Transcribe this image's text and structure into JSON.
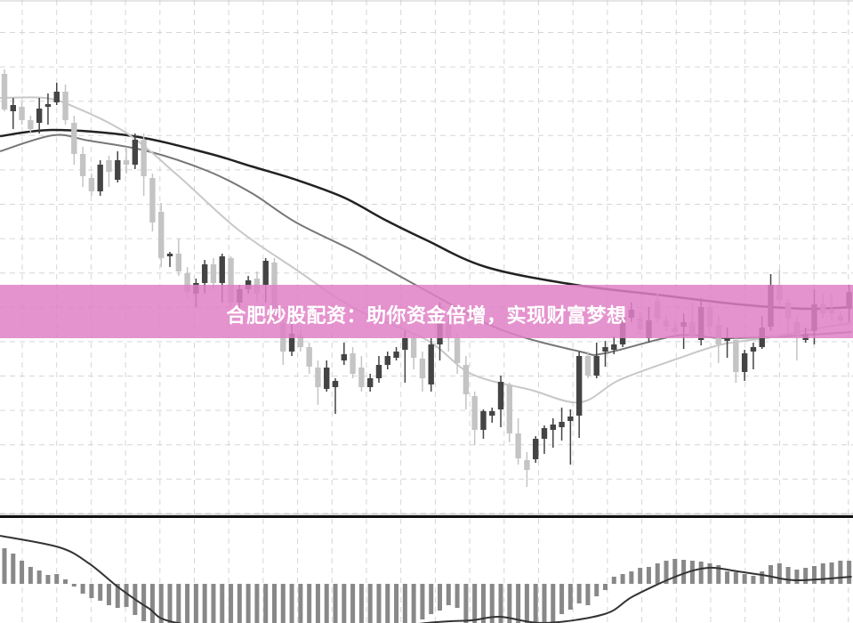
{
  "banner": {
    "text": "合肥炒股配资：助你资金倍增，实现财富梦想",
    "color": "#e080c6"
  },
  "chart_data": [
    {
      "type": "candlestick",
      "title": "",
      "xlabel": "",
      "ylabel": "",
      "ylim": [
        2.2,
        60
      ],
      "grid": true,
      "colors": {
        "up": "#444444",
        "down": "#c4c4c4"
      },
      "candles_ohlc": [
        [
          51.7,
          52.2,
          47.5,
          47.7
        ],
        [
          47.5,
          49,
          45.5,
          48.2
        ],
        [
          48,
          48.5,
          46,
          46.5
        ],
        [
          46.5,
          47,
          45,
          45.5
        ],
        [
          46.2,
          49,
          45,
          47.8
        ],
        [
          48,
          49.5,
          46,
          48.3
        ],
        [
          48.5,
          50.7,
          48.2,
          49.7
        ],
        [
          49.7,
          50.5,
          46,
          46.5
        ],
        [
          46.2,
          47,
          41.5,
          42.7
        ],
        [
          42.7,
          43.5,
          39,
          40.2
        ],
        [
          40,
          40.5,
          38,
          38.5
        ],
        [
          38.5,
          42,
          38,
          41.5
        ],
        [
          42,
          42.5,
          39,
          40.7
        ],
        [
          39.8,
          43,
          39.5,
          42
        ],
        [
          42,
          43.5,
          40.5,
          41.5
        ],
        [
          41.5,
          45,
          41,
          44.3
        ],
        [
          44.3,
          45,
          38,
          40.2
        ],
        [
          40,
          40.5,
          34,
          35
        ],
        [
          36.2,
          37.2,
          30,
          31
        ],
        [
          31.2,
          31.7,
          30,
          31.5
        ],
        [
          31.5,
          33.2,
          29,
          29.5
        ],
        [
          29.3,
          30,
          26.5,
          27.2
        ],
        [
          27,
          28.7,
          25.5,
          28.2
        ],
        [
          28.2,
          30.8,
          27,
          30.3
        ],
        [
          30.3,
          31,
          27.5,
          28.2
        ],
        [
          28.2,
          31.5,
          26,
          31.2
        ],
        [
          31,
          31.2,
          25.5,
          26
        ],
        [
          26,
          28,
          25.5,
          27.5
        ],
        [
          27.5,
          29,
          27,
          28.5
        ],
        [
          28.7,
          29.5,
          26,
          27
        ],
        [
          28,
          31,
          26,
          30.7
        ],
        [
          30.5,
          31,
          23.5,
          24
        ],
        [
          23.7,
          24.5,
          19,
          20.5
        ],
        [
          20.5,
          24,
          20,
          22.5
        ],
        [
          22.3,
          23,
          20.5,
          21
        ],
        [
          21,
          21.5,
          18,
          18.8
        ],
        [
          18.7,
          19.5,
          14.5,
          16.5
        ],
        [
          16.3,
          19.5,
          16,
          18.7
        ],
        [
          16.5,
          17.5,
          13.5,
          17.2
        ],
        [
          19.5,
          21.5,
          19,
          20.2
        ],
        [
          20.3,
          21,
          17.5,
          18
        ],
        [
          18.7,
          20,
          16,
          16.5
        ],
        [
          16.5,
          18,
          16,
          17.5
        ],
        [
          17.5,
          20,
          17,
          19
        ],
        [
          19,
          20.5,
          18.5,
          20
        ],
        [
          19.8,
          21,
          19.5,
          20.5
        ],
        [
          20.7,
          22.8,
          17,
          22
        ],
        [
          22,
          22.5,
          18.5,
          19.8
        ],
        [
          19.7,
          20.5,
          16,
          17.5
        ],
        [
          16.8,
          22,
          16,
          21.3
        ],
        [
          21.3,
          26,
          19.5,
          23.7
        ],
        [
          23.7,
          25,
          20.5,
          22
        ],
        [
          22,
          22.5,
          18,
          19.2
        ],
        [
          19,
          20,
          14,
          15.7
        ],
        [
          15.5,
          16,
          10,
          11.7
        ],
        [
          11.7,
          14,
          10.7,
          13.8
        ],
        [
          13.3,
          14.2,
          12.5,
          13.8
        ],
        [
          14,
          17.8,
          12,
          17.1
        ],
        [
          16.8,
          17,
          10.3,
          11.3
        ],
        [
          11.3,
          13,
          7.8,
          8.5
        ],
        [
          8.3,
          9.2,
          5.3,
          7.2
        ],
        [
          8.4,
          11,
          8,
          10.7
        ],
        [
          10.7,
          12.2,
          9,
          11.9
        ],
        [
          11.7,
          13,
          9.7,
          12.3
        ],
        [
          12,
          14.2,
          10.5,
          12.6
        ],
        [
          12.7,
          14,
          7.8,
          13.2
        ],
        [
          13.3,
          20.5,
          10.8,
          20
        ],
        [
          20,
          20.5,
          17.5,
          17.8
        ],
        [
          17.8,
          21.5,
          17.5,
          20
        ],
        [
          20.5,
          21.7,
          18.8,
          21
        ],
        [
          20.7,
          22.2,
          20.2,
          21.3
        ],
        [
          21.3,
          25,
          21,
          24.3
        ],
        [
          24.3,
          26,
          23.8,
          25.2
        ],
        [
          24.2,
          25,
          22.5,
          23
        ],
        [
          22,
          25.5,
          21.5,
          24
        ],
        [
          26.2,
          27,
          23.8,
          24.2
        ],
        [
          24,
          24.5,
          22.8,
          23.3
        ],
        [
          23.2,
          24,
          22.2,
          22.7
        ],
        [
          23.3,
          24.8,
          20.8,
          23.8
        ],
        [
          23.8,
          26,
          22,
          22.3
        ],
        [
          21.8,
          26.5,
          21.2,
          25.5
        ],
        [
          25.5,
          26,
          22.5,
          23.3
        ],
        [
          23.5,
          24.5,
          19.2,
          21.3
        ],
        [
          21.7,
          23.2,
          19.8,
          22
        ],
        [
          21.8,
          22.2,
          17,
          18.2
        ],
        [
          18.2,
          20.7,
          17.2,
          20.3
        ],
        [
          20.5,
          21.5,
          18.5,
          21
        ],
        [
          21,
          24.5,
          20.8,
          23.2
        ],
        [
          23.3,
          29.2,
          22.8,
          28
        ],
        [
          28,
          29.7,
          25.8,
          26.3
        ],
        [
          26,
          26.5,
          22.5,
          24.2
        ],
        [
          23.8,
          24.5,
          19.5,
          22.3
        ],
        [
          21.8,
          23.2,
          21.5,
          22.5
        ],
        [
          22.8,
          27.5,
          21.3,
          25.8
        ],
        [
          25.8,
          27,
          24.2,
          24.8
        ],
        [
          25.3,
          27,
          24,
          24.8
        ],
        [
          24.5,
          25,
          23.5,
          24
        ],
        [
          25.3,
          28,
          23.8,
          27.2
        ]
      ],
      "moving_averages": [
        {
          "color": "#222222",
          "points": [
            [
              -0.5,
              44.7
            ],
            [
              5.6,
              45.4
            ],
            [
              14.8,
              44.7
            ],
            [
              23.3,
              42.8
            ],
            [
              28.4,
              41.3
            ],
            [
              33.5,
              39.8
            ],
            [
              39,
              37.8
            ],
            [
              43.7,
              35.3
            ],
            [
              48.5,
              33
            ],
            [
              55.3,
              30
            ],
            [
              65.5,
              28
            ],
            [
              75.7,
              26.8
            ],
            [
              82.4,
              26
            ],
            [
              88,
              25.5
            ],
            [
              92.7,
              25.3
            ],
            [
              97.3,
              25.5
            ]
          ]
        },
        {
          "color": "#777777",
          "points": [
            [
              -0.5,
              43
            ],
            [
              5.6,
              44.8
            ],
            [
              9.7,
              44.2
            ],
            [
              16.5,
              43
            ],
            [
              23.3,
              40.8
            ],
            [
              28.4,
              38.3
            ],
            [
              33.5,
              35
            ],
            [
              40.3,
              31.7
            ],
            [
              48.5,
              27.3
            ],
            [
              56.9,
              23
            ],
            [
              66.1,
              20.5
            ],
            [
              68.9,
              20.3
            ],
            [
              77.3,
              22.3
            ],
            [
              82.4,
              22
            ],
            [
              89.3,
              22.2
            ],
            [
              97.3,
              22.7
            ]
          ]
        },
        {
          "color": "#c8c8c8",
          "points": [
            [
              -0.5,
              49
            ],
            [
              4.6,
              49
            ],
            [
              8,
              48
            ],
            [
              14.1,
              45
            ],
            [
              19.9,
              40.3
            ],
            [
              26.7,
              34.3
            ],
            [
              33.5,
              29.7
            ],
            [
              40.3,
              25.3
            ],
            [
              48.5,
              21.8
            ],
            [
              53.6,
              18
            ],
            [
              60.4,
              16.2
            ],
            [
              66.1,
              14.8
            ],
            [
              70.6,
              17.3
            ],
            [
              77.3,
              19.7
            ],
            [
              82.4,
              21.3
            ],
            [
              88.1,
              22.1
            ],
            [
              92.7,
              23
            ],
            [
              97.3,
              23.7
            ]
          ]
        }
      ]
    },
    {
      "type": "bar",
      "title": "",
      "ylim": [
        -4.4,
        7.4
      ],
      "bar_color": "#888888",
      "histogram": [
        4,
        3.4,
        2.6,
        1.9,
        1.5,
        1,
        1.1,
        0.5,
        -0.3,
        -1.1,
        -1.6,
        -1.9,
        -2.4,
        -2.7,
        -2.6,
        -3.5,
        -4.2,
        -5,
        -5.5,
        -6,
        -6,
        -6,
        -6,
        -6,
        -6,
        -6,
        -6,
        -6,
        -6,
        -6,
        -6,
        -6,
        -6,
        -6,
        -6,
        -6,
        -6,
        -6,
        -6,
        -6,
        -6,
        -6,
        -6,
        -5.5,
        -5.2,
        -5,
        -4.8,
        -4.6,
        -4,
        -3.4,
        -3,
        -2.4,
        -2.7,
        -4.5,
        -5,
        -5,
        -5,
        -5,
        -5,
        -5,
        -5,
        -5,
        -4.8,
        -4.6,
        -3.4,
        -2.9,
        -2.2,
        -2.4,
        -1.4,
        -0.7,
        0.8,
        1.1,
        1.4,
        1.8,
        1.9,
        2.3,
        2.6,
        2.8,
        2.7,
        2.6,
        2.5,
        2.3,
        2.1,
        1.4,
        1.3,
        1.1,
        0.9,
        1.4,
        2.1,
        2.3,
        1.9,
        1.6,
        1.8,
        2,
        2.3,
        2.4,
        2.6,
        2.6
      ],
      "signal": {
        "color": "#333333",
        "points": [
          [
            -0.5,
            5.4
          ],
          [
            6.3,
            4.1
          ],
          [
            9.7,
            2.3
          ],
          [
            13.1,
            -0.4
          ],
          [
            16.5,
            -2.7
          ],
          [
            19.9,
            -4.4
          ],
          [
            34,
            -6
          ],
          [
            48.5,
            -4.4
          ],
          [
            53.6,
            -4.1
          ],
          [
            56.9,
            -3.7
          ],
          [
            62,
            -4.4
          ],
          [
            68.9,
            -3.4
          ],
          [
            72.2,
            -1.4
          ],
          [
            77.3,
            0.9
          ],
          [
            80.8,
            1.8
          ],
          [
            84.2,
            1.4
          ],
          [
            87.6,
            0.9
          ],
          [
            91,
            0.4
          ],
          [
            97.3,
            0.8
          ]
        ]
      }
    }
  ]
}
